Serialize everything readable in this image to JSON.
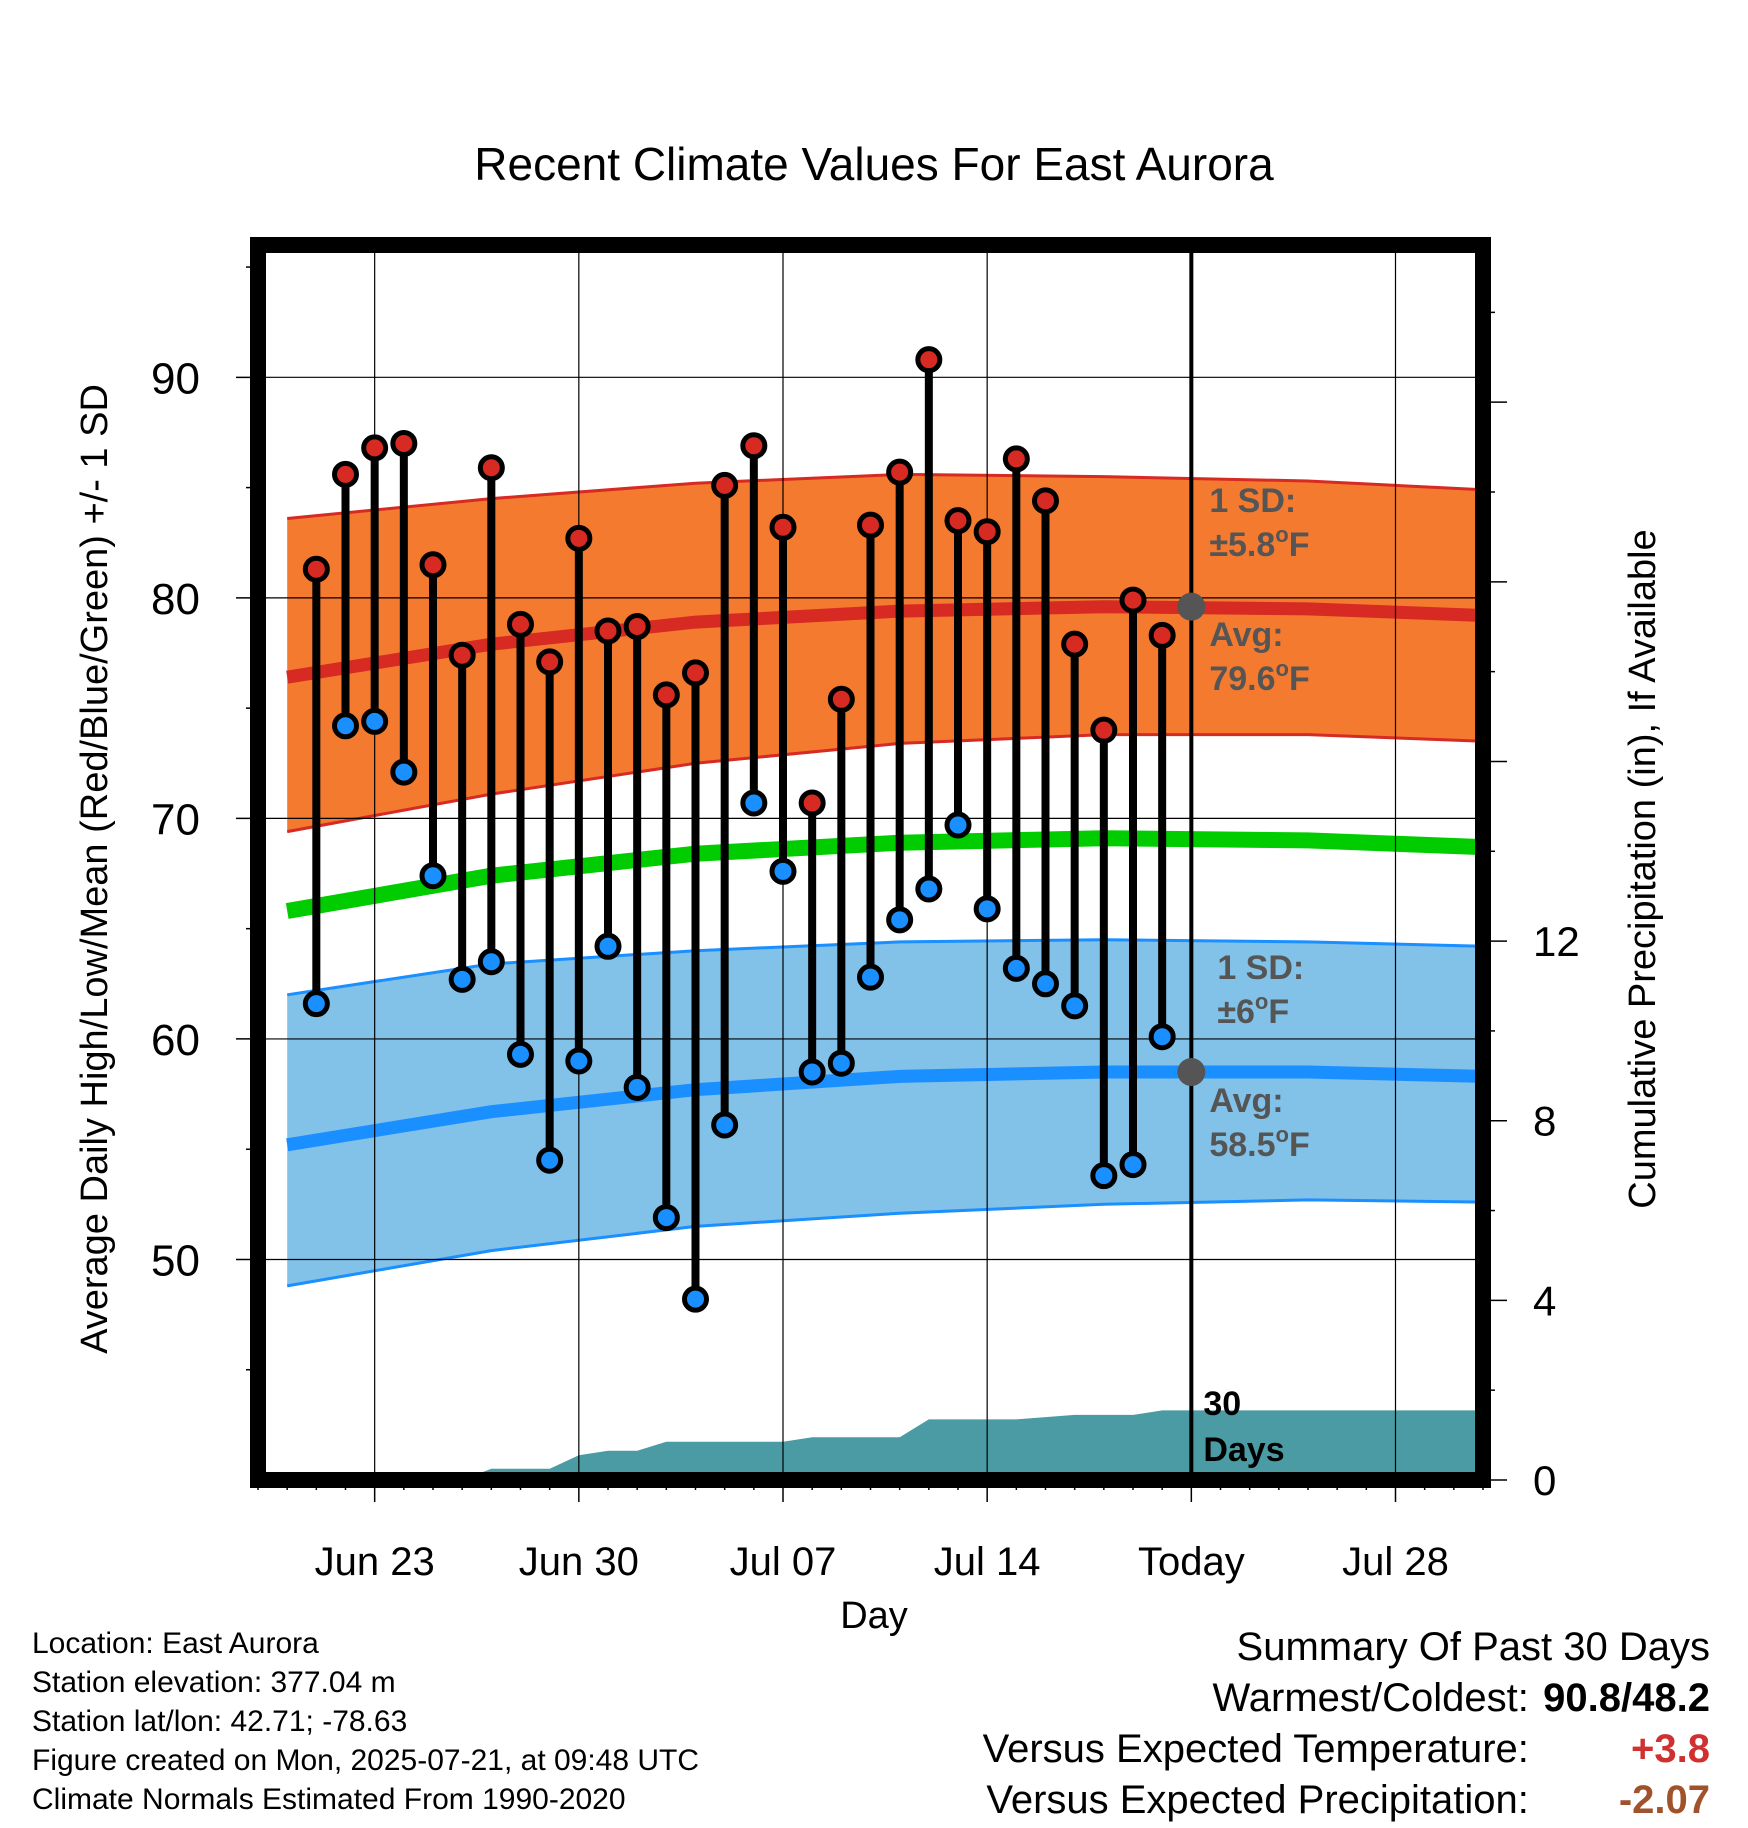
{
  "title": "Recent Climate Values For East Aurora",
  "xlabel": "Day",
  "ylabel_left": "Average Daily High/Low/Mean (Red/Blue/Green) +/- 1 SD",
  "ylabel_right": "Cumulative Precipitation (in), If Available",
  "colors": {
    "high_band": "#f47a2f",
    "high_line": "#d62a23",
    "low_band": "#82c1e8",
    "low_line": "#1a8fff",
    "mean_line": "#00cc00",
    "precip": "#4a9ba3",
    "high_dot": "#d62a23",
    "low_dot": "#1a8fff",
    "today_marker": "#555555",
    "annotation": "#555555"
  },
  "annotations": {
    "high_sd_title": "1 SD:",
    "high_sd_value": "±5.8",
    "high_avg_title": "Avg:",
    "high_avg_value": "79.6",
    "low_sd_title": "1 SD:",
    "low_sd_value": "±6",
    "low_avg_title": "Avg:",
    "low_avg_value": "58.5",
    "unit": "F",
    "degree": "o",
    "precip_label_1": "30",
    "precip_label_2": "Days"
  },
  "footer": {
    "location": "Location: East Aurora",
    "elevation": "Station elevation: 377.04 m",
    "latlon": "Station lat/lon: 42.71; -78.63",
    "created": "Figure created on Mon, 2025-07-21, at 09:48 UTC",
    "normals": "Climate Normals Estimated From 1990-2020"
  },
  "summary": {
    "title": "Summary Of Past 30 Days",
    "warmest_label": "Warmest/Coldest:",
    "warmest_value": "90.8",
    "slash": "/",
    "coldest_value": "48.2",
    "temp_label": "Versus Expected Temperature:",
    "temp_value": "+3.8",
    "precip_label": "Versus Expected Precipitation:",
    "precip_value": "-2.07"
  },
  "chart_data": {
    "type": "line",
    "title": "Recent Climate Values For East Aurora",
    "xlabel": "Day",
    "ylabel": "Average Daily High/Low/Mean (Red/Blue/Green) +/- 1 SD",
    "y2label": "Cumulative Precipitation (in), If Available",
    "x_ticks": [
      "Jun 23",
      "Jun 30",
      "Jul 07",
      "Jul 14",
      "Today",
      "Jul 28"
    ],
    "x_tick_dates": [
      "2025-06-23",
      "2025-06-30",
      "2025-07-07",
      "2025-07-14",
      "2025-07-21",
      "2025-07-28"
    ],
    "xlim": [
      "2025-06-19",
      "2025-07-31"
    ],
    "today": "2025-07-21",
    "ylim": [
      40,
      96
    ],
    "y_ticks": [
      50,
      60,
      70,
      80,
      90
    ],
    "y2lim": [
      0,
      27.5
    ],
    "y2_ticks": [
      0,
      4,
      8,
      12
    ],
    "grid": true,
    "daily": {
      "dates": [
        "2025-06-21",
        "2025-06-22",
        "2025-06-23",
        "2025-06-24",
        "2025-06-25",
        "2025-06-26",
        "2025-06-27",
        "2025-06-28",
        "2025-06-29",
        "2025-06-30",
        "2025-07-01",
        "2025-07-02",
        "2025-07-03",
        "2025-07-04",
        "2025-07-05",
        "2025-07-06",
        "2025-07-07",
        "2025-07-08",
        "2025-07-09",
        "2025-07-10",
        "2025-07-11",
        "2025-07-12",
        "2025-07-13",
        "2025-07-14",
        "2025-07-15",
        "2025-07-16",
        "2025-07-17",
        "2025-07-18",
        "2025-07-19",
        "2025-07-20"
      ],
      "high": [
        81.3,
        85.6,
        86.8,
        87.0,
        81.5,
        77.4,
        85.9,
        78.8,
        77.1,
        82.7,
        78.5,
        78.7,
        75.6,
        76.6,
        85.1,
        86.9,
        83.2,
        70.7,
        75.4,
        83.3,
        85.7,
        90.8,
        83.5,
        83.0,
        86.3,
        84.4,
        77.9,
        74.0,
        79.9,
        78.3
      ],
      "low": [
        61.6,
        74.2,
        74.4,
        72.1,
        67.4,
        62.7,
        63.5,
        59.3,
        54.5,
        59.0,
        64.2,
        57.8,
        51.9,
        48.2,
        56.1,
        70.7,
        67.6,
        58.5,
        58.9,
        62.8,
        65.4,
        66.8,
        69.7,
        65.9,
        63.2,
        62.5,
        61.5,
        53.8,
        54.3,
        60.1
      ]
    },
    "normals": {
      "dates": [
        "2025-06-20",
        "2025-06-27",
        "2025-07-04",
        "2025-07-11",
        "2025-07-18",
        "2025-07-25",
        "2025-07-31"
      ],
      "high_avg": [
        76.4,
        77.9,
        78.9,
        79.4,
        79.6,
        79.5,
        79.2
      ],
      "high_upper": [
        83.6,
        84.5,
        85.2,
        85.6,
        85.5,
        85.3,
        84.9
      ],
      "high_lower": [
        69.4,
        71.1,
        72.5,
        73.4,
        73.8,
        73.8,
        73.5
      ],
      "mean": [
        65.8,
        67.4,
        68.4,
        68.9,
        69.1,
        69.0,
        68.7
      ],
      "low_avg": [
        55.2,
        56.7,
        57.7,
        58.3,
        58.5,
        58.5,
        58.3
      ],
      "low_upper": [
        62.0,
        63.4,
        64.0,
        64.4,
        64.5,
        64.4,
        64.2
      ],
      "low_lower": [
        48.8,
        50.4,
        51.5,
        52.1,
        52.5,
        52.7,
        52.6
      ]
    },
    "cumulative_precip": {
      "dates": [
        "2025-06-19",
        "2025-06-25",
        "2025-06-26",
        "2025-06-27",
        "2025-06-28",
        "2025-06-29",
        "2025-06-30",
        "2025-07-01",
        "2025-07-02",
        "2025-07-03",
        "2025-07-04",
        "2025-07-05",
        "2025-07-06",
        "2025-07-07",
        "2025-07-08",
        "2025-07-09",
        "2025-07-10",
        "2025-07-11",
        "2025-07-12",
        "2025-07-13",
        "2025-07-14",
        "2025-07-15",
        "2025-07-16",
        "2025-07-17",
        "2025-07-18",
        "2025-07-19",
        "2025-07-20",
        "2025-07-31"
      ],
      "values": [
        0,
        0,
        0,
        0.25,
        0.25,
        0.25,
        0.55,
        0.65,
        0.65,
        0.85,
        0.85,
        0.85,
        0.85,
        0.85,
        0.95,
        0.95,
        0.95,
        0.95,
        1.35,
        1.35,
        1.35,
        1.35,
        1.4,
        1.45,
        1.45,
        1.45,
        1.55,
        1.55
      ]
    }
  }
}
